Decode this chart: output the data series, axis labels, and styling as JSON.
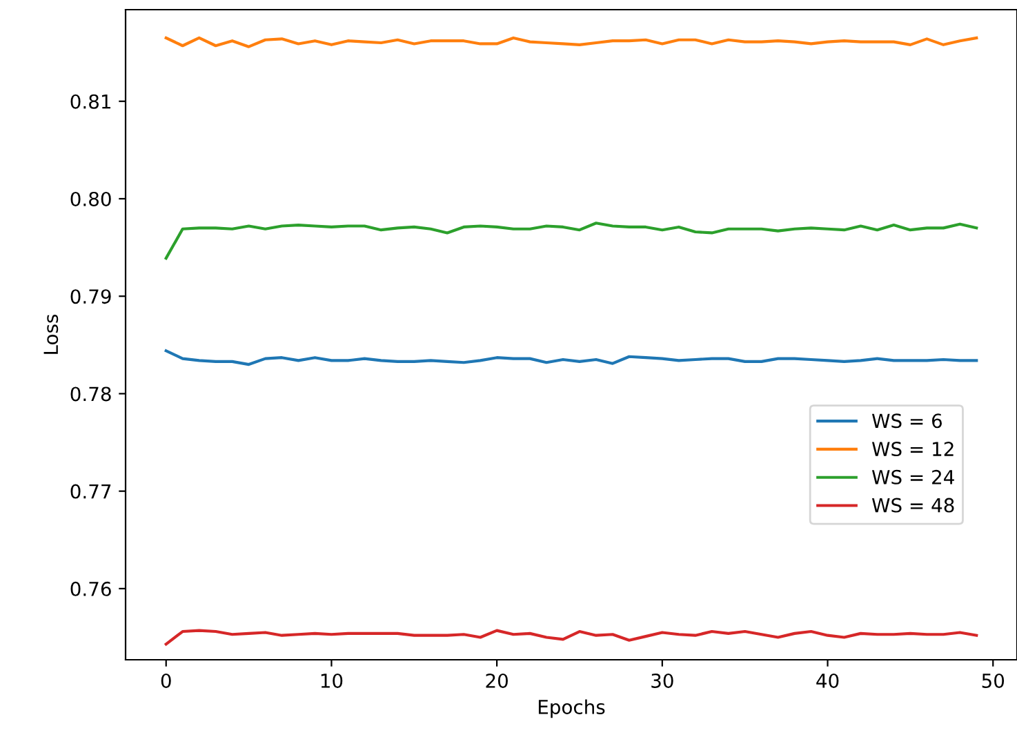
{
  "chart_data": {
    "type": "line",
    "xlabel": "Epochs",
    "ylabel": "Loss",
    "x": [
      0,
      1,
      2,
      3,
      4,
      5,
      6,
      7,
      8,
      9,
      10,
      11,
      12,
      13,
      14,
      15,
      16,
      17,
      18,
      19,
      20,
      21,
      22,
      23,
      24,
      25,
      26,
      27,
      28,
      29,
      30,
      31,
      32,
      33,
      34,
      35,
      36,
      37,
      38,
      39,
      40,
      41,
      42,
      43,
      44,
      45,
      46,
      47,
      48,
      49
    ],
    "xlim": [
      -2.45,
      51.45
    ],
    "xticks": [
      0,
      10,
      20,
      30,
      40,
      50
    ],
    "ylim": [
      0.7527,
      0.8194
    ],
    "yticks": [
      {
        "value": 0.76,
        "label": "0.76"
      },
      {
        "value": 0.77,
        "label": "0.77"
      },
      {
        "value": 0.78,
        "label": "0.78"
      },
      {
        "value": 0.79,
        "label": "0.79"
      },
      {
        "value": 0.8,
        "label": "0.80"
      },
      {
        "value": 0.81,
        "label": "0.81"
      }
    ],
    "grid": false,
    "legend": "right",
    "series": [
      {
        "name": "WS = 6",
        "color": "#1f77b4",
        "values": [
          0.7844,
          0.7836,
          0.7834,
          0.7833,
          0.7833,
          0.783,
          0.7836,
          0.7837,
          0.7834,
          0.7837,
          0.7834,
          0.7834,
          0.7836,
          0.7834,
          0.7833,
          0.7833,
          0.7834,
          0.7833,
          0.7832,
          0.7834,
          0.7837,
          0.7836,
          0.7836,
          0.7832,
          0.7835,
          0.7833,
          0.7835,
          0.7831,
          0.7838,
          0.7837,
          0.7836,
          0.7834,
          0.7835,
          0.7836,
          0.7836,
          0.7833,
          0.7833,
          0.7836,
          0.7836,
          0.7835,
          0.7834,
          0.7833,
          0.7834,
          0.7836,
          0.7834,
          0.7834,
          0.7834,
          0.7835,
          0.7834,
          0.7834
        ]
      },
      {
        "name": "WS = 12",
        "color": "#ff7f0e",
        "values": [
          0.8165,
          0.8157,
          0.8165,
          0.8157,
          0.8162,
          0.8156,
          0.8163,
          0.8164,
          0.8159,
          0.8162,
          0.8158,
          0.8162,
          0.8161,
          0.816,
          0.8163,
          0.8159,
          0.8162,
          0.8162,
          0.8162,
          0.8159,
          0.8159,
          0.8165,
          0.8161,
          0.816,
          0.8159,
          0.8158,
          0.816,
          0.8162,
          0.8162,
          0.8163,
          0.8159,
          0.8163,
          0.8163,
          0.8159,
          0.8163,
          0.8161,
          0.8161,
          0.8162,
          0.8161,
          0.8159,
          0.8161,
          0.8162,
          0.8161,
          0.8161,
          0.8161,
          0.8158,
          0.8164,
          0.8158,
          0.8162,
          0.8165
        ]
      },
      {
        "name": "WS = 24",
        "color": "#2ca02c",
        "values": [
          0.7939,
          0.7969,
          0.797,
          0.797,
          0.7969,
          0.7972,
          0.7969,
          0.7972,
          0.7973,
          0.7972,
          0.7971,
          0.7972,
          0.7972,
          0.7968,
          0.797,
          0.7971,
          0.7969,
          0.7965,
          0.7971,
          0.7972,
          0.7971,
          0.7969,
          0.7969,
          0.7972,
          0.7971,
          0.7968,
          0.7975,
          0.7972,
          0.7971,
          0.7971,
          0.7968,
          0.7971,
          0.7966,
          0.7965,
          0.7969,
          0.7969,
          0.7969,
          0.7967,
          0.7969,
          0.797,
          0.7969,
          0.7968,
          0.7972,
          0.7968,
          0.7973,
          0.7968,
          0.797,
          0.797,
          0.7974,
          0.797
        ]
      },
      {
        "name": "WS = 48",
        "color": "#d62728",
        "values": [
          0.7543,
          0.7556,
          0.7557,
          0.7556,
          0.7553,
          0.7554,
          0.7555,
          0.7552,
          0.7553,
          0.7554,
          0.7553,
          0.7554,
          0.7554,
          0.7554,
          0.7554,
          0.7552,
          0.7552,
          0.7552,
          0.7553,
          0.755,
          0.7557,
          0.7553,
          0.7554,
          0.755,
          0.7548,
          0.7556,
          0.7552,
          0.7553,
          0.7547,
          0.7551,
          0.7555,
          0.7553,
          0.7552,
          0.7556,
          0.7554,
          0.7556,
          0.7553,
          0.755,
          0.7554,
          0.7556,
          0.7552,
          0.755,
          0.7554,
          0.7553,
          0.7553,
          0.7554,
          0.7553,
          0.7553,
          0.7555,
          0.7552
        ]
      }
    ]
  }
}
